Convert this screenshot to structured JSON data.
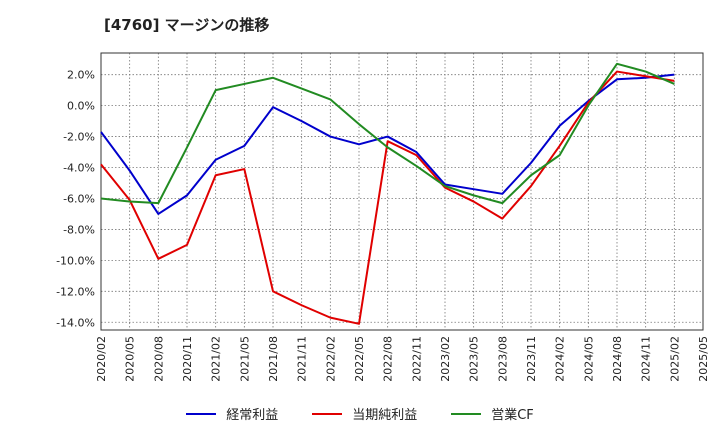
{
  "chart_data": {
    "type": "line",
    "title": "[4760]  マージンの推移",
    "xlabel": "",
    "ylabel": "",
    "x": [
      "2020/02",
      "2020/05",
      "2020/08",
      "2020/11",
      "2021/02",
      "2021/05",
      "2021/08",
      "2021/11",
      "2022/02",
      "2022/05",
      "2022/08",
      "2022/11",
      "2023/02",
      "2023/05",
      "2023/08",
      "2023/11",
      "2024/02",
      "2024/05",
      "2024/08",
      "2024/11",
      "2025/02",
      "2025/05"
    ],
    "ylim": [
      -14.5,
      3.4
    ],
    "yticks": [
      2,
      0,
      -2,
      -4,
      -6,
      -8,
      -10,
      -12,
      -14
    ],
    "ytick_labels": [
      "2.0%",
      "0.0%",
      "-2.0%",
      "-4.0%",
      "-6.0%",
      "-8.0%",
      "-10.0%",
      "-12.0%",
      "-14.0%"
    ],
    "grid": true,
    "legend_position": "bottom",
    "series": [
      {
        "name": "経常利益",
        "color": "#0000cc",
        "values": [
          -1.7,
          -4.2,
          -7.0,
          -5.8,
          -3.5,
          -2.6,
          -0.1,
          -1.0,
          -2.0,
          -2.5,
          -2.0,
          -3.0,
          -5.1,
          -5.4,
          -5.7,
          -3.7,
          -1.3,
          0.3,
          1.7,
          1.8,
          2.0,
          null
        ]
      },
      {
        "name": "当期純利益",
        "color": "#e00000",
        "values": [
          -3.8,
          -6.1,
          -9.9,
          -9.0,
          -4.5,
          -4.1,
          -12.0,
          -12.9,
          -13.7,
          -14.1,
          -2.3,
          -3.2,
          -5.3,
          -6.2,
          -7.3,
          -5.2,
          -2.6,
          0.2,
          2.2,
          1.9,
          1.6,
          null
        ]
      },
      {
        "name": "営業CF",
        "color": "#228b22",
        "values": [
          -6.0,
          -6.2,
          -6.3,
          -2.7,
          1.0,
          1.4,
          1.8,
          1.1,
          0.4,
          -1.2,
          -2.7,
          -3.9,
          -5.2,
          -5.8,
          -6.3,
          -4.5,
          -3.2,
          0.0,
          2.7,
          2.2,
          1.4,
          null
        ]
      }
    ]
  }
}
